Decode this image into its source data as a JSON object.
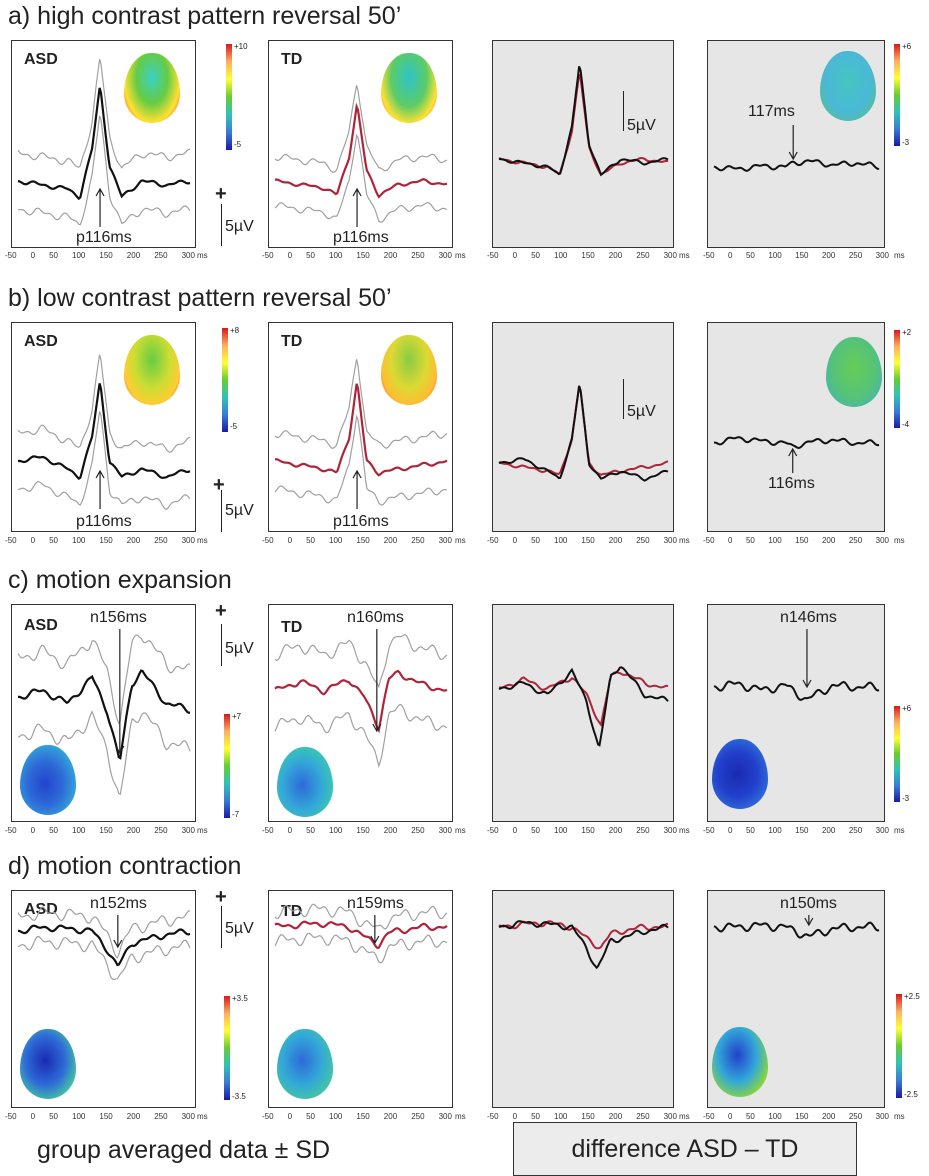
{
  "rows": [
    {
      "title": "a) high contrast pattern reversal 50’",
      "asd_peak": "p116ms",
      "td_peak": "p116ms",
      "diff_peak": "117ms",
      "cbar_group": {
        "max": "+10",
        "min": "-5"
      },
      "cbar_diff": {
        "max": "+6",
        "min": "-3"
      }
    },
    {
      "title": "b) low contrast pattern reversal 50’",
      "asd_peak": "p116ms",
      "td_peak": "p116ms",
      "diff_peak": "116ms",
      "cbar_group": {
        "max": "+8",
        "min": "-5"
      },
      "cbar_diff": {
        "max": "+2",
        "min": "-4"
      }
    },
    {
      "title": "c) motion expansion",
      "asd_peak": "n156ms",
      "td_peak": "n160ms",
      "diff_peak": "n146ms",
      "cbar_group": {
        "max": "+7",
        "min": "-7"
      },
      "cbar_diff": {
        "max": "+6",
        "min": "-3"
      }
    },
    {
      "title": "d) motion contraction",
      "asd_peak": "n152ms",
      "td_peak": "n159ms",
      "diff_peak": "n150ms",
      "cbar_group": {
        "max": "+3.5",
        "min": "-3.5"
      },
      "cbar_diff": {
        "max": "+2.5",
        "min": "-2.5"
      }
    }
  ],
  "labels": {
    "asd": "ASD",
    "td": "TD",
    "scale": "5µV",
    "ms": "ms",
    "plus": "+"
  },
  "footer": {
    "left": "group averaged data ± SD",
    "right": "difference  ASD – TD"
  },
  "colors": {
    "asd_trace": "#111111",
    "td_trace": "#b0243a",
    "sd_trace": "#a0a0a0",
    "diff_bg": "#e6e6e6"
  },
  "chart_data": [
    {
      "type": "line",
      "title": "a) high contrast pattern reversal 50’",
      "xlabel": "ms",
      "xlim": [
        -50,
        300
      ],
      "x_ticks": [
        "-50",
        "0",
        "50",
        "100",
        "150",
        "200",
        "250",
        "300"
      ],
      "series": [
        {
          "name": "ASD",
          "x": [
            -50,
            0,
            50,
            75,
            100,
            116,
            135,
            160,
            200,
            250,
            300
          ],
          "y": [
            0,
            -0.5,
            -1,
            -2,
            4,
            12,
            2,
            -2,
            0,
            -0.5,
            0
          ]
        },
        {
          "name": "TD",
          "x": [
            -50,
            0,
            50,
            75,
            100,
            116,
            135,
            160,
            200,
            250,
            300
          ],
          "y": [
            0,
            -0.5,
            -1,
            -2,
            3.5,
            11,
            1.5,
            -2,
            -0.5,
            0,
            -0.5
          ]
        },
        {
          "name": "ASD – TD",
          "x": [
            -50,
            0,
            50,
            100,
            117,
            150,
            200,
            250,
            300
          ],
          "y": [
            0,
            -0.2,
            0.1,
            0,
            0.4,
            0.6,
            0.2,
            0.4,
            0
          ]
        }
      ]
    },
    {
      "type": "line",
      "title": "b) low contrast pattern reversal 50’",
      "xlabel": "ms",
      "xlim": [
        -50,
        300
      ],
      "x_ticks": [
        "-50",
        "0",
        "50",
        "100",
        "150",
        "200",
        "250",
        "300"
      ],
      "series": [
        {
          "name": "ASD",
          "x": [
            -50,
            0,
            50,
            75,
            100,
            116,
            135,
            160,
            200,
            250,
            300
          ],
          "y": [
            0,
            0.5,
            -1,
            -2,
            3,
            10,
            0,
            -2,
            -1,
            -2,
            -1
          ]
        },
        {
          "name": "TD",
          "x": [
            -50,
            0,
            50,
            75,
            100,
            116,
            135,
            160,
            200,
            250,
            300
          ],
          "y": [
            0,
            -0.5,
            -1,
            -1.5,
            3,
            10,
            0,
            -1.5,
            -1,
            -0.5,
            0
          ]
        },
        {
          "name": "ASD – TD",
          "x": [
            -50,
            0,
            50,
            100,
            116,
            150,
            200,
            250,
            300
          ],
          "y": [
            0,
            0.5,
            0.2,
            0,
            -0.4,
            0.1,
            0.3,
            0,
            0
          ]
        }
      ]
    },
    {
      "type": "line",
      "title": "c) motion expansion",
      "xlabel": "ms",
      "xlim": [
        -50,
        300
      ],
      "x_ticks": [
        "-50",
        "0",
        "50",
        "100",
        "150",
        "200",
        "250",
        "300"
      ],
      "series": [
        {
          "name": "ASD",
          "x": [
            -50,
            0,
            50,
            100,
            130,
            156,
            180,
            200,
            250,
            300
          ],
          "y": [
            0,
            0.5,
            -0.5,
            1.5,
            -1,
            -5,
            1,
            2,
            -0.5,
            -1
          ]
        },
        {
          "name": "TD",
          "x": [
            -50,
            0,
            50,
            100,
            130,
            160,
            180,
            200,
            250,
            300
          ],
          "y": [
            0,
            0.8,
            0,
            1,
            -0.5,
            -3,
            1,
            1.5,
            0.5,
            0
          ]
        },
        {
          "name": "ASD – TD",
          "x": [
            -50,
            0,
            50,
            100,
            146,
            200,
            250,
            300
          ],
          "y": [
            0,
            0.2,
            -0.2,
            0.1,
            -0.8,
            0.1,
            0,
            0
          ]
        }
      ]
    },
    {
      "type": "line",
      "title": "d) motion contraction",
      "xlabel": "ms",
      "xlim": [
        -50,
        300
      ],
      "x_ticks": [
        "-50",
        "0",
        "50",
        "100",
        "150",
        "200",
        "250",
        "300"
      ],
      "series": [
        {
          "name": "ASD",
          "x": [
            -50,
            0,
            50,
            100,
            130,
            152,
            180,
            200,
            250,
            300
          ],
          "y": [
            0,
            0.3,
            0.2,
            0,
            -1.5,
            -3,
            -1,
            -0.8,
            -0.3,
            0
          ]
        },
        {
          "name": "TD",
          "x": [
            -50,
            0,
            50,
            100,
            130,
            159,
            180,
            200,
            250,
            300
          ],
          "y": [
            0,
            0.2,
            0.3,
            0,
            -0.8,
            -1.5,
            -0.5,
            -0.3,
            0,
            0
          ]
        },
        {
          "name": "ASD – TD",
          "x": [
            -50,
            0,
            50,
            100,
            150,
            200,
            250,
            300
          ],
          "y": [
            0,
            0,
            0.1,
            0,
            -0.6,
            -0.1,
            0,
            0
          ]
        }
      ]
    }
  ]
}
